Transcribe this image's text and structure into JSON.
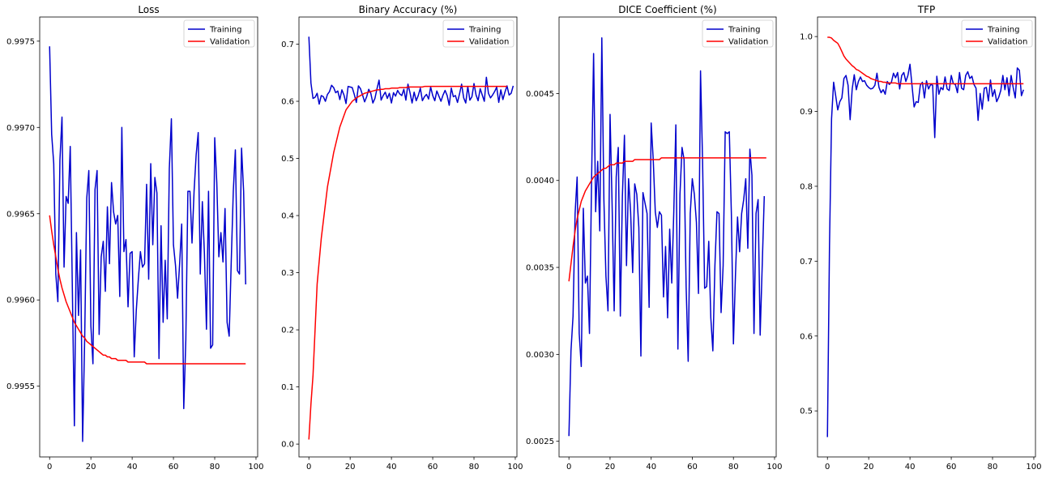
{
  "colors": {
    "training": "#0000cc",
    "validation": "#ff0000",
    "axes": "#000000",
    "legend_border": "#cccccc"
  },
  "chart_data": [
    {
      "type": "line",
      "title": "Loss",
      "xlabel": "",
      "ylabel": "",
      "xlim": [
        -4.8,
        100.8
      ],
      "ylim": [
        0.99509,
        0.99764
      ],
      "xticks": [
        0,
        20,
        40,
        60,
        80,
        100
      ],
      "yticks": [
        0.9955,
        0.996,
        0.9965,
        0.997,
        0.9975
      ],
      "ytick_labels": [
        "0.9955",
        "0.9960",
        "0.9965",
        "0.9970",
        "0.9975"
      ],
      "grid": false,
      "legend": "top-right",
      "series": [
        {
          "name": "Training",
          "color": "#0000cc",
          "values": [
            0.99747,
            0.99696,
            0.99679,
            0.99615,
            0.99599,
            0.99681,
            0.99706,
            0.99619,
            0.9966,
            0.99656,
            0.99689,
            0.99608,
            0.99527,
            0.99639,
            0.99591,
            0.99629,
            0.99518,
            0.99578,
            0.99659,
            0.99675,
            0.99585,
            0.99563,
            0.99664,
            0.99675,
            0.9958,
            0.99625,
            0.99634,
            0.99605,
            0.99654,
            0.99621,
            0.99668,
            0.99651,
            0.99644,
            0.99649,
            0.99602,
            0.997,
            0.99628,
            0.99635,
            0.99596,
            0.99627,
            0.99628,
            0.99567,
            0.99594,
            0.99612,
            0.99628,
            0.99619,
            0.99621,
            0.99667,
            0.99612,
            0.99679,
            0.99632,
            0.99671,
            0.99662,
            0.99566,
            0.99643,
            0.99587,
            0.99623,
            0.99589,
            0.99676,
            0.99705,
            0.99632,
            0.9962,
            0.99601,
            0.99621,
            0.99644,
            0.99537,
            0.99577,
            0.99663,
            0.99663,
            0.99633,
            0.99663,
            0.99684,
            0.99697,
            0.99615,
            0.99657,
            0.99627,
            0.99583,
            0.99663,
            0.99572,
            0.99574,
            0.99694,
            0.99668,
            0.99625,
            0.99639,
            0.99622,
            0.99653,
            0.99587,
            0.99579,
            0.99622,
            0.99663,
            0.99687,
            0.99617,
            0.99615,
            0.99688,
            0.99663,
            0.99609
          ]
        },
        {
          "name": "Validation",
          "color": "#ff0000",
          "values": [
            0.99649,
            0.9964,
            0.99632,
            0.99625,
            0.99618,
            0.99612,
            0.99607,
            0.99603,
            0.99599,
            0.99596,
            0.99593,
            0.9959,
            0.99587,
            0.99585,
            0.99583,
            0.99581,
            0.99579,
            0.99578,
            0.99576,
            0.99575,
            0.99574,
            0.99573,
            0.99572,
            0.99571,
            0.9957,
            0.99569,
            0.99568,
            0.99568,
            0.99567,
            0.99567,
            0.99566,
            0.99566,
            0.99566,
            0.99565,
            0.99565,
            0.99565,
            0.99565,
            0.99565,
            0.99564,
            0.99564,
            0.99564,
            0.99564,
            0.99564,
            0.99564,
            0.99564,
            0.99564,
            0.99564,
            0.99563,
            0.99563,
            0.99563,
            0.99563,
            0.99563,
            0.99563,
            0.99563,
            0.99563,
            0.99563,
            0.99563,
            0.99563,
            0.99563,
            0.99563,
            0.99563,
            0.99563,
            0.99563,
            0.99563,
            0.99563,
            0.99563,
            0.99563,
            0.99563,
            0.99563,
            0.99563,
            0.99563,
            0.99563,
            0.99563,
            0.99563,
            0.99563,
            0.99563,
            0.99563,
            0.99563,
            0.99563,
            0.99563,
            0.99563,
            0.99563,
            0.99563,
            0.99563,
            0.99563,
            0.99563,
            0.99563,
            0.99563,
            0.99563,
            0.99563,
            0.99563,
            0.99563,
            0.99563,
            0.99563,
            0.99563,
            0.99563
          ]
        }
      ]
    },
    {
      "type": "line",
      "title": "Binary Accuracy (%)",
      "xlabel": "",
      "ylabel": "",
      "xlim": [
        -4.8,
        100.8
      ],
      "ylim": [
        -0.0225,
        0.7475
      ],
      "xticks": [
        0,
        20,
        40,
        60,
        80,
        100
      ],
      "yticks": [
        0.0,
        0.1,
        0.2,
        0.3,
        0.4,
        0.5,
        0.6,
        0.7
      ],
      "ytick_labels": [
        "0.0",
        "0.1",
        "0.2",
        "0.3",
        "0.4",
        "0.5",
        "0.6",
        "0.7"
      ],
      "grid": false,
      "legend": "top-right",
      "series": [
        {
          "name": "Training",
          "color": "#0000cc",
          "values": [
            0.713,
            0.632,
            0.605,
            0.607,
            0.614,
            0.595,
            0.61,
            0.608,
            0.6,
            0.612,
            0.617,
            0.628,
            0.624,
            0.615,
            0.618,
            0.603,
            0.62,
            0.611,
            0.596,
            0.626,
            0.625,
            0.624,
            0.612,
            0.598,
            0.627,
            0.622,
            0.611,
            0.599,
            0.608,
            0.621,
            0.614,
            0.597,
            0.605,
            0.622,
            0.637,
            0.602,
            0.61,
            0.616,
            0.605,
            0.614,
            0.597,
            0.615,
            0.609,
            0.619,
            0.613,
            0.61,
            0.621,
            0.602,
            0.63,
            0.615,
            0.597,
            0.616,
            0.601,
            0.61,
            0.623,
            0.601,
            0.608,
            0.612,
            0.604,
            0.625,
            0.61,
            0.601,
            0.618,
            0.609,
            0.6,
            0.611,
            0.619,
            0.61,
            0.593,
            0.623,
            0.608,
            0.61,
            0.598,
            0.613,
            0.63,
            0.606,
            0.597,
            0.626,
            0.602,
            0.608,
            0.631,
            0.611,
            0.601,
            0.622,
            0.611,
            0.6,
            0.642,
            0.614,
            0.606,
            0.611,
            0.617,
            0.625,
            0.598,
            0.62,
            0.603,
            0.616,
            0.627,
            0.611,
            0.614,
            0.627
          ]
        },
        {
          "name": "Validation",
          "color": "#ff0000",
          "values": [
            0.008,
            0.07,
            0.12,
            0.2,
            0.28,
            0.32,
            0.36,
            0.39,
            0.42,
            0.45,
            0.47,
            0.49,
            0.51,
            0.525,
            0.54,
            0.555,
            0.565,
            0.575,
            0.585,
            0.59,
            0.595,
            0.6,
            0.603,
            0.606,
            0.608,
            0.61,
            0.612,
            0.614,
            0.615,
            0.616,
            0.617,
            0.618,
            0.619,
            0.62,
            0.62,
            0.621,
            0.621,
            0.622,
            0.622,
            0.622,
            0.623,
            0.623,
            0.623,
            0.623,
            0.624,
            0.624,
            0.624,
            0.624,
            0.625,
            0.625,
            0.625,
            0.625,
            0.625,
            0.625,
            0.625,
            0.625,
            0.626,
            0.626,
            0.626,
            0.626,
            0.626,
            0.626,
            0.626,
            0.626,
            0.626,
            0.626,
            0.626,
            0.626,
            0.626,
            0.626,
            0.626,
            0.626,
            0.626,
            0.626,
            0.626,
            0.626,
            0.626,
            0.626,
            0.626,
            0.626,
            0.626,
            0.626,
            0.626,
            0.626,
            0.626,
            0.626,
            0.626,
            0.626,
            0.626,
            0.626,
            0.626,
            0.626,
            0.626,
            0.626,
            0.626,
            0.626,
            0.626
          ]
        }
      ]
    },
    {
      "type": "line",
      "title": "DICE Coefficient (%)",
      "xlabel": "",
      "ylabel": "",
      "xlim": [
        -4.8,
        100.8
      ],
      "ylim": [
        0.00241,
        0.00494
      ],
      "xticks": [
        0,
        20,
        40,
        60,
        80,
        100
      ],
      "yticks": [
        0.0025,
        0.003,
        0.0035,
        0.004,
        0.0045
      ],
      "ytick_labels": [
        "0.0025",
        "0.0030",
        "0.0035",
        "0.0040",
        "0.0045"
      ],
      "grid": false,
      "legend": "top-right",
      "series": [
        {
          "name": "Training",
          "color": "#0000cc",
          "values": [
            0.00253,
            0.00302,
            0.00322,
            0.00381,
            0.00402,
            0.00312,
            0.00293,
            0.00384,
            0.00341,
            0.00345,
            0.00312,
            0.00399,
            0.00473,
            0.00382,
            0.00411,
            0.00371,
            0.00482,
            0.00389,
            0.00345,
            0.00325,
            0.00438,
            0.00386,
            0.00325,
            0.00402,
            0.00419,
            0.00322,
            0.00391,
            0.00426,
            0.00351,
            0.00401,
            0.00382,
            0.00347,
            0.00398,
            0.00392,
            0.00373,
            0.00299,
            0.00393,
            0.00387,
            0.00381,
            0.00327,
            0.00433,
            0.00412,
            0.00382,
            0.00373,
            0.00382,
            0.0038,
            0.00333,
            0.00362,
            0.00321,
            0.00372,
            0.00341,
            0.00382,
            0.00432,
            0.00303,
            0.00392,
            0.00419,
            0.00412,
            0.00339,
            0.00296,
            0.00381,
            0.00401,
            0.00392,
            0.00376,
            0.00335,
            0.00463,
            0.00411,
            0.00338,
            0.00339,
            0.00365,
            0.00321,
            0.00302,
            0.00351,
            0.00382,
            0.00381,
            0.00324,
            0.00351,
            0.00428,
            0.00427,
            0.00428,
            0.00381,
            0.00306,
            0.00346,
            0.00379,
            0.00359,
            0.00381,
            0.00389,
            0.00401,
            0.00361,
            0.00418,
            0.00403,
            0.00312,
            0.00381,
            0.00389,
            0.00311,
            0.00351,
            0.00391
          ]
        },
        {
          "name": "Validation",
          "color": "#ff0000",
          "values": [
            0.00342,
            0.00352,
            0.00362,
            0.00371,
            0.00378,
            0.00383,
            0.00388,
            0.00391,
            0.00394,
            0.00396,
            0.00398,
            0.004,
            0.00402,
            0.00403,
            0.00404,
            0.00405,
            0.00406,
            0.00407,
            0.00407,
            0.00408,
            0.00409,
            0.00409,
            0.00409,
            0.0041,
            0.0041,
            0.0041,
            0.0041,
            0.00411,
            0.00411,
            0.00411,
            0.00411,
            0.00411,
            0.00412,
            0.00412,
            0.00412,
            0.00412,
            0.00412,
            0.00412,
            0.00412,
            0.00412,
            0.00412,
            0.00412,
            0.00412,
            0.00412,
            0.00412,
            0.00413,
            0.00413,
            0.00413,
            0.00413,
            0.00413,
            0.00413,
            0.00413,
            0.00413,
            0.00413,
            0.00413,
            0.00413,
            0.00413,
            0.00413,
            0.00413,
            0.00413,
            0.00413,
            0.00413,
            0.00413,
            0.00413,
            0.00413,
            0.00413,
            0.00413,
            0.00413,
            0.00413,
            0.00413,
            0.00413,
            0.00413,
            0.00413,
            0.00413,
            0.00413,
            0.00413,
            0.00413,
            0.00413,
            0.00413,
            0.00413,
            0.00413,
            0.00413,
            0.00413,
            0.00413,
            0.00413,
            0.00413,
            0.00413,
            0.00413,
            0.00413,
            0.00413,
            0.00413,
            0.00413,
            0.00413,
            0.00413,
            0.00413,
            0.00413,
            0.00413
          ]
        }
      ]
    },
    {
      "type": "line",
      "title": "TFP",
      "xlabel": "",
      "ylabel": "",
      "xlim": [
        -4.8,
        100.8
      ],
      "ylim": [
        0.4385,
        1.0261
      ],
      "xticks": [
        0,
        20,
        40,
        60,
        80,
        100
      ],
      "yticks": [
        0.5,
        0.6,
        0.7,
        0.8,
        0.9,
        1.0
      ],
      "ytick_labels": [
        "0.5",
        "0.6",
        "0.7",
        "0.8",
        "0.9",
        "1.0"
      ],
      "grid": false,
      "legend": "top-right",
      "series": [
        {
          "name": "Training",
          "color": "#0000cc",
          "values": [
            0.465,
            0.72,
            0.89,
            0.939,
            0.921,
            0.902,
            0.913,
            0.918,
            0.944,
            0.948,
            0.935,
            0.889,
            0.93,
            0.949,
            0.929,
            0.94,
            0.946,
            0.94,
            0.941,
            0.935,
            0.932,
            0.93,
            0.931,
            0.935,
            0.951,
            0.932,
            0.925,
            0.929,
            0.923,
            0.94,
            0.936,
            0.939,
            0.951,
            0.945,
            0.952,
            0.93,
            0.948,
            0.952,
            0.94,
            0.948,
            0.963,
            0.934,
            0.906,
            0.913,
            0.912,
            0.935,
            0.939,
            0.918,
            0.941,
            0.93,
            0.936,
            0.935,
            0.865,
            0.947,
            0.923,
            0.932,
            0.929,
            0.946,
            0.93,
            0.928,
            0.948,
            0.937,
            0.936,
            0.925,
            0.952,
            0.931,
            0.929,
            0.948,
            0.953,
            0.944,
            0.947,
            0.936,
            0.931,
            0.888,
            0.924,
            0.903,
            0.931,
            0.932,
            0.914,
            0.942,
            0.92,
            0.929,
            0.913,
            0.919,
            0.928,
            0.948,
            0.929,
            0.945,
            0.921,
            0.948,
            0.932,
            0.918,
            0.958,
            0.955,
            0.921,
            0.929
          ]
        },
        {
          "name": "Validation",
          "color": "#ff0000",
          "values": [
            0.999,
            0.999,
            0.998,
            0.995,
            0.993,
            0.991,
            0.986,
            0.98,
            0.974,
            0.97,
            0.967,
            0.964,
            0.961,
            0.959,
            0.956,
            0.955,
            0.953,
            0.951,
            0.949,
            0.947,
            0.946,
            0.944,
            0.943,
            0.942,
            0.941,
            0.94,
            0.94,
            0.939,
            0.939,
            0.938,
            0.938,
            0.938,
            0.938,
            0.938,
            0.937,
            0.937,
            0.937,
            0.937,
            0.937,
            0.937,
            0.937,
            0.937,
            0.937,
            0.937,
            0.937,
            0.937,
            0.937,
            0.937,
            0.937,
            0.937,
            0.937,
            0.937,
            0.937,
            0.937,
            0.937,
            0.937,
            0.937,
            0.937,
            0.937,
            0.937,
            0.937,
            0.937,
            0.937,
            0.937,
            0.937,
            0.937,
            0.937,
            0.937,
            0.937,
            0.937,
            0.937,
            0.937,
            0.937,
            0.937,
            0.937,
            0.937,
            0.937,
            0.937,
            0.937,
            0.937,
            0.937,
            0.937,
            0.937,
            0.937,
            0.937,
            0.937,
            0.937,
            0.937,
            0.937,
            0.937,
            0.937,
            0.937,
            0.937,
            0.937,
            0.937,
            0.937
          ]
        }
      ]
    }
  ]
}
